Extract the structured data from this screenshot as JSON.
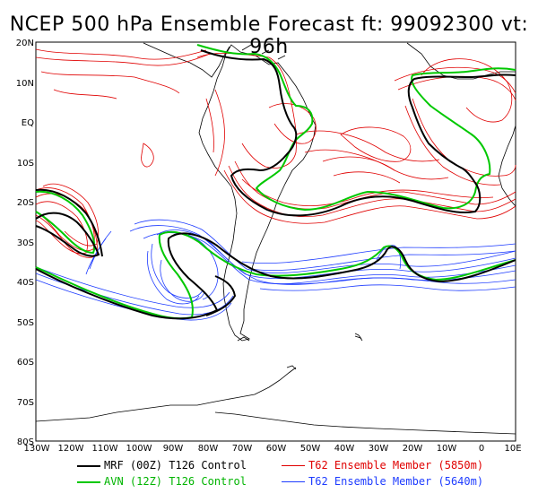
{
  "title": "NCEP 500 hPa Ensemble Forecast  ft: 99092300 vt: 96h",
  "lat_labels": [
    "20N",
    "10N",
    "EQ",
    "10S",
    "20S",
    "30S",
    "40S",
    "50S",
    "60S",
    "70S",
    "80S"
  ],
  "lon_labels": [
    "130W",
    "120W",
    "110W",
    "100W",
    "90W",
    "80W",
    "70W",
    "60W",
    "50W",
    "40W",
    "30W",
    "20W",
    "10W",
    "0",
    "10E"
  ],
  "legend": {
    "mrf": "MRF (00Z) T126 Control",
    "avn": "AVN (12Z) T126 Control",
    "red": "T62 Ensemble Member (5850m)",
    "blue": "T62 Ensemble Member (5640m)"
  },
  "colors": {
    "mrf": "#000000",
    "avn": "#00c800",
    "red": "#e00000",
    "blue": "#1e3cff",
    "coast": "#000000"
  }
}
